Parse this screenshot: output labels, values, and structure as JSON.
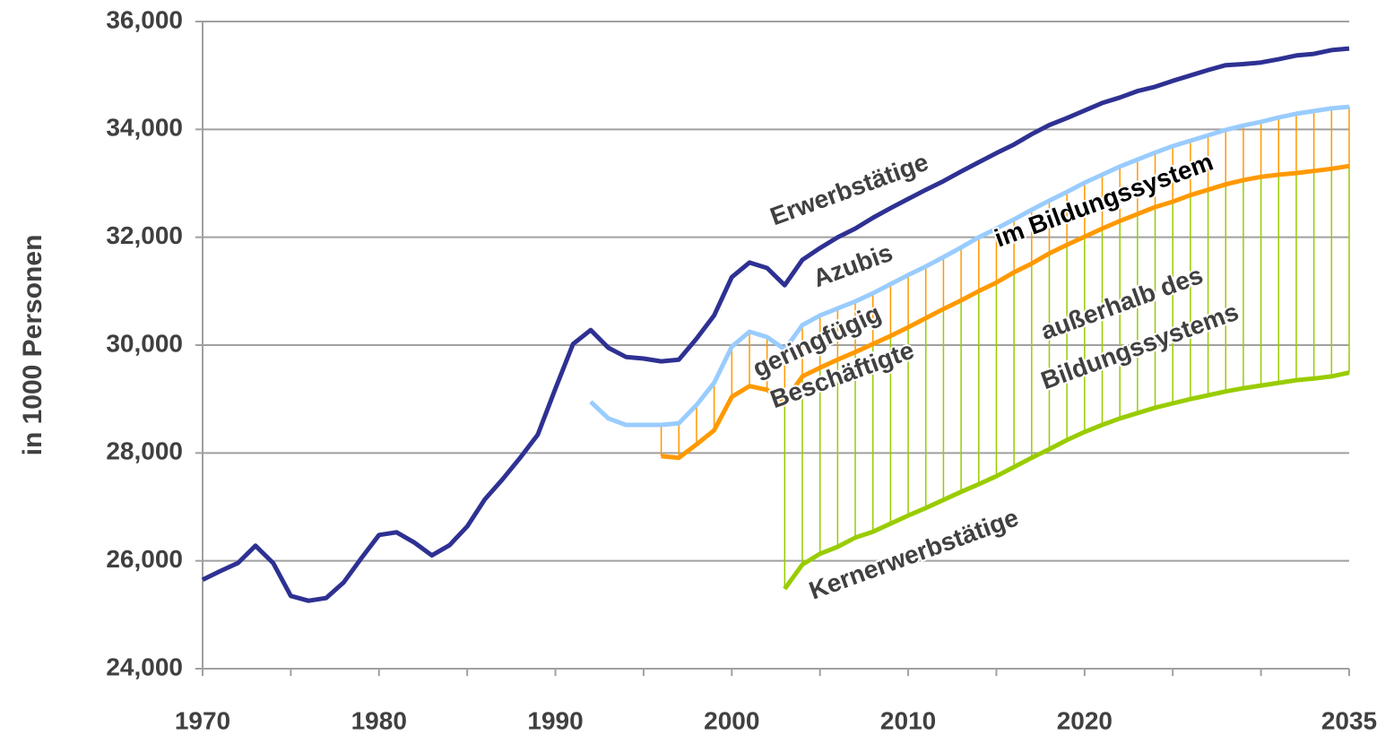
{
  "chart_data": {
    "type": "line",
    "ylabel": "in 1000 Personen",
    "x": [
      1970,
      1971,
      1972,
      1973,
      1974,
      1975,
      1976,
      1977,
      1978,
      1979,
      1980,
      1981,
      1982,
      1983,
      1984,
      1985,
      1986,
      1987,
      1988,
      1989,
      1990,
      1991,
      1992,
      1993,
      1994,
      1995,
      1996,
      1997,
      1998,
      1999,
      2000,
      2001,
      2002,
      2003,
      2004,
      2005,
      2006,
      2007,
      2008,
      2009,
      2010,
      2011,
      2012,
      2013,
      2014,
      2015,
      2016,
      2017,
      2018,
      2019,
      2020,
      2021,
      2022,
      2023,
      2024,
      2025,
      2026,
      2027,
      2028,
      2029,
      2030,
      2031,
      2032,
      2033,
      2034,
      2035
    ],
    "series": [
      {
        "color": "#2e3192",
        "values": [
          25650,
          25810,
          25960,
          26280,
          25960,
          25350,
          25260,
          25310,
          25600,
          26050,
          26480,
          26530,
          26340,
          26100,
          26290,
          26640,
          27140,
          27510,
          27910,
          28340,
          29190,
          30020,
          30280,
          29950,
          29780,
          29750,
          29700,
          29730,
          30120,
          30550,
          31260,
          31530,
          31430,
          31110,
          31580,
          31800,
          32000,
          32160,
          32360,
          32540,
          32710,
          32880,
          33040,
          33220,
          33390,
          33560,
          33720,
          33910,
          34080,
          34210,
          34350,
          34490,
          34590,
          34710,
          34790,
          34900,
          35000,
          35100,
          35190,
          35210,
          35240,
          35300,
          35370,
          35400,
          35470,
          35500
        ]
      },
      {
        "color": "#99ccff",
        "values": [
          null,
          null,
          null,
          null,
          null,
          null,
          null,
          null,
          null,
          null,
          null,
          null,
          null,
          null,
          null,
          null,
          null,
          null,
          null,
          null,
          null,
          null,
          28950,
          28640,
          28520,
          28520,
          28520,
          28550,
          28890,
          29300,
          29970,
          30250,
          30150,
          29920,
          30370,
          30550,
          30680,
          30810,
          30960,
          31130,
          31300,
          31460,
          31630,
          31810,
          32000,
          32160,
          32330,
          32510,
          32680,
          32840,
          33010,
          33160,
          33310,
          33440,
          33570,
          33690,
          33790,
          33890,
          33990,
          34070,
          34140,
          34220,
          34290,
          34340,
          34390,
          34420
        ]
      },
      {
        "color": "#ff9900",
        "values": [
          null,
          null,
          null,
          null,
          null,
          null,
          null,
          null,
          null,
          null,
          null,
          null,
          null,
          null,
          null,
          null,
          null,
          null,
          null,
          null,
          null,
          null,
          null,
          null,
          null,
          null,
          27940,
          27910,
          28160,
          28420,
          29040,
          29240,
          29170,
          28950,
          29420,
          29580,
          29730,
          29870,
          30020,
          30170,
          30330,
          30500,
          30670,
          30830,
          31000,
          31160,
          31350,
          31510,
          31700,
          31860,
          32010,
          32160,
          32300,
          32430,
          32560,
          32660,
          32780,
          32880,
          32980,
          33060,
          33120,
          33160,
          33190,
          33230,
          33270,
          33320
        ]
      },
      {
        "color": "#99cc00",
        "values": [
          null,
          null,
          null,
          null,
          null,
          null,
          null,
          null,
          null,
          null,
          null,
          null,
          null,
          null,
          null,
          null,
          null,
          null,
          null,
          null,
          null,
          null,
          null,
          null,
          null,
          null,
          null,
          null,
          null,
          null,
          null,
          null,
          null,
          25480,
          25930,
          26130,
          26260,
          26430,
          26540,
          26690,
          26840,
          26980,
          27130,
          27280,
          27420,
          27570,
          27740,
          27910,
          28070,
          28240,
          28390,
          28520,
          28640,
          28740,
          28840,
          28920,
          29000,
          29070,
          29140,
          29200,
          29250,
          29300,
          29350,
          29380,
          29420,
          29490
        ]
      }
    ],
    "annotations": [
      "Erwerbstätige",
      "Azubis",
      "im Bildungssystem",
      "geringfügig",
      "Beschäftigte",
      "außerhalb des",
      "Bildungssystems",
      "Kernerwerbstätige"
    ],
    "xlim": [
      1970,
      2035
    ],
    "xticks": [
      1970,
      1980,
      1990,
      2000,
      2010,
      2020,
      2035
    ],
    "xminorticks": [
      1975,
      1985,
      1995,
      2005,
      2015,
      2025,
      2030
    ],
    "ylim": [
      24000,
      36000
    ],
    "yticks": [
      {
        "value": 24000,
        "label": "24,000"
      },
      {
        "value": 26000,
        "label": "26,000"
      },
      {
        "value": 28000,
        "label": "28,000"
      },
      {
        "value": 30000,
        "label": "30,000"
      },
      {
        "value": 32000,
        "label": "32,000"
      },
      {
        "value": 34000,
        "label": "34,000"
      },
      {
        "value": 36000,
        "label": "36,000"
      }
    ],
    "grid": true
  }
}
